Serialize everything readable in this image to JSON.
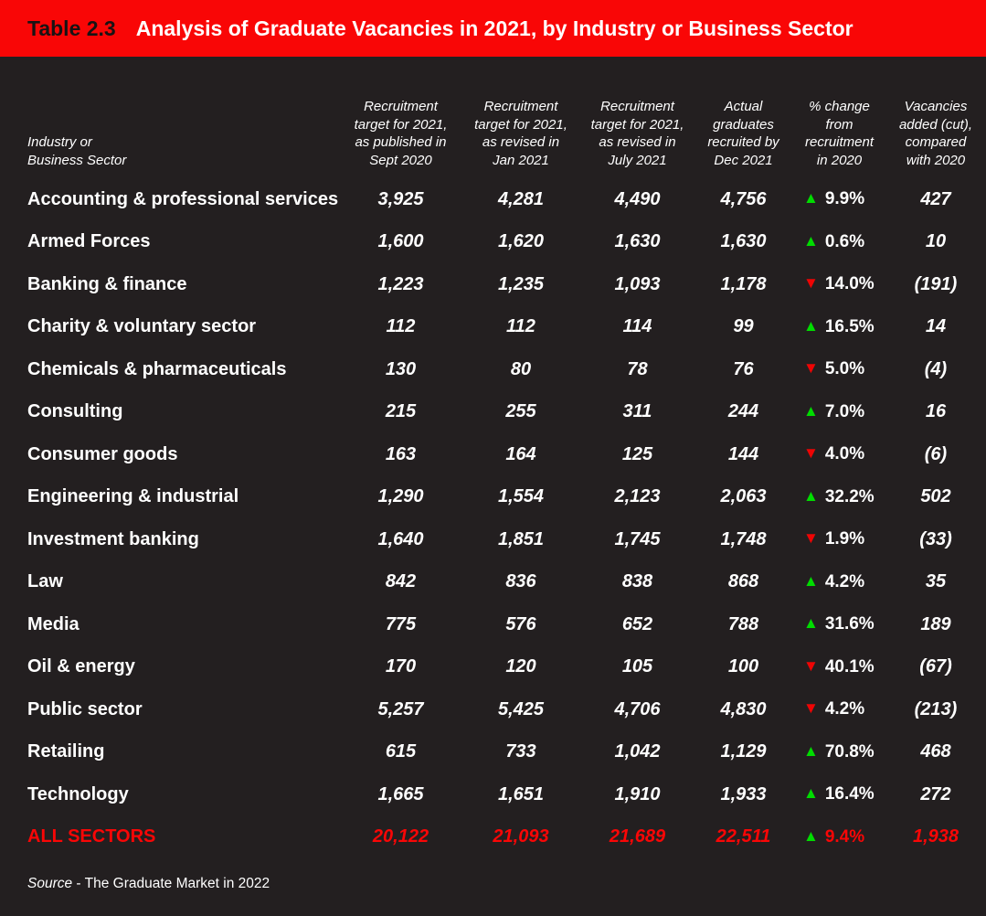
{
  "title_bar": {
    "label": "Table 2.3",
    "title": "Analysis of Graduate Vacancies in 2021, by Industry or Business Sector"
  },
  "colors": {
    "header_red": "#f90606",
    "background": "#231f20",
    "text_white": "#ffffff",
    "positive_green": "#00dc00",
    "negative_red": "#ee0404",
    "total_row_red": "#f90606"
  },
  "icons": {
    "up": "▲",
    "down": "▼"
  },
  "table": {
    "industry_header_lines": [
      "Industry or",
      "Business Sector"
    ],
    "column_header_lines": [
      [
        "Recruitment",
        "target for 2021,",
        "as published in",
        "Sept 2020"
      ],
      [
        "Recruitment",
        "target for 2021,",
        "as revised in",
        "Jan 2021"
      ],
      [
        "Recruitment",
        "target for 2021,",
        "as revised in",
        "July 2021"
      ],
      [
        "Actual",
        "graduates",
        "recruited by",
        "Dec 2021"
      ],
      [
        "% change",
        "from",
        "recruitment",
        "in 2020"
      ],
      [
        "Vacancies",
        "added (cut),",
        "compared",
        "with 2020"
      ]
    ],
    "rows": [
      {
        "sector": "Accounting & professional services",
        "values": [
          "3,925",
          "4,281",
          "4,490",
          "4,756"
        ],
        "dir": "up",
        "pct": "9.9%",
        "vacancies": "427",
        "total": false
      },
      {
        "sector": "Armed Forces",
        "values": [
          "1,600",
          "1,620",
          "1,630",
          "1,630"
        ],
        "dir": "up",
        "pct": "0.6%",
        "vacancies": "10",
        "total": false
      },
      {
        "sector": "Banking & finance",
        "values": [
          "1,223",
          "1,235",
          "1,093",
          "1,178"
        ],
        "dir": "down",
        "pct": "14.0%",
        "vacancies": "(191)",
        "total": false
      },
      {
        "sector": "Charity & voluntary sector",
        "values": [
          "112",
          "112",
          "114",
          "99"
        ],
        "dir": "up",
        "pct": "16.5%",
        "vacancies": "14",
        "total": false
      },
      {
        "sector": "Chemicals & pharmaceuticals",
        "values": [
          "130",
          "80",
          "78",
          "76"
        ],
        "dir": "down",
        "pct": "5.0%",
        "vacancies": "(4)",
        "total": false
      },
      {
        "sector": "Consulting",
        "values": [
          "215",
          "255",
          "311",
          "244"
        ],
        "dir": "up",
        "pct": "7.0%",
        "vacancies": "16",
        "total": false
      },
      {
        "sector": "Consumer goods",
        "values": [
          "163",
          "164",
          "125",
          "144"
        ],
        "dir": "down",
        "pct": "4.0%",
        "vacancies": "(6)",
        "total": false
      },
      {
        "sector": "Engineering & industrial",
        "values": [
          "1,290",
          "1,554",
          "2,123",
          "2,063"
        ],
        "dir": "up",
        "pct": "32.2%",
        "vacancies": "502",
        "total": false
      },
      {
        "sector": "Investment banking",
        "values": [
          "1,640",
          "1,851",
          "1,745",
          "1,748"
        ],
        "dir": "down",
        "pct": "1.9%",
        "vacancies": "(33)",
        "total": false
      },
      {
        "sector": "Law",
        "values": [
          "842",
          "836",
          "838",
          "868"
        ],
        "dir": "up",
        "pct": "4.2%",
        "vacancies": "35",
        "total": false
      },
      {
        "sector": "Media",
        "values": [
          "775",
          "576",
          "652",
          "788"
        ],
        "dir": "up",
        "pct": "31.6%",
        "vacancies": "189",
        "total": false
      },
      {
        "sector": "Oil & energy",
        "values": [
          "170",
          "120",
          "105",
          "100"
        ],
        "dir": "down",
        "pct": "40.1%",
        "vacancies": "(67)",
        "total": false
      },
      {
        "sector": "Public sector",
        "values": [
          "5,257",
          "5,425",
          "4,706",
          "4,830"
        ],
        "dir": "down",
        "pct": "4.2%",
        "vacancies": "(213)",
        "total": false
      },
      {
        "sector": "Retailing",
        "values": [
          "615",
          "733",
          "1,042",
          "1,129"
        ],
        "dir": "up",
        "pct": "70.8%",
        "vacancies": "468",
        "total": false
      },
      {
        "sector": "Technology",
        "values": [
          "1,665",
          "1,651",
          "1,910",
          "1,933"
        ],
        "dir": "up",
        "pct": "16.4%",
        "vacancies": "272",
        "total": false
      },
      {
        "sector": "ALL SECTORS",
        "values": [
          "20,122",
          "21,093",
          "21,689",
          "22,511"
        ],
        "dir": "up",
        "pct": "9.4%",
        "vacancies": "1,938",
        "total": true
      }
    ]
  },
  "source": {
    "prefix": "Source",
    "text": " - The Graduate Market in 2022"
  },
  "chart_data": {
    "type": "table",
    "title": "Table 2.3 Analysis of Graduate Vacancies in 2021, by Industry or Business Sector",
    "columns": [
      "Industry or Business Sector",
      "Recruitment target for 2021, as published in Sept 2020",
      "Recruitment target for 2021, as revised in Jan 2021",
      "Recruitment target for 2021, as revised in July 2021",
      "Actual graduates recruited by Dec 2021",
      "% change from recruitment in 2020",
      "Vacancies added (cut), compared with 2020"
    ],
    "rows": [
      [
        "Accounting & professional services",
        3925,
        4281,
        4490,
        4756,
        9.9,
        427
      ],
      [
        "Armed Forces",
        1600,
        1620,
        1630,
        1630,
        0.6,
        10
      ],
      [
        "Banking & finance",
        1223,
        1235,
        1093,
        1178,
        -14.0,
        -191
      ],
      [
        "Charity & voluntary sector",
        112,
        112,
        114,
        99,
        16.5,
        14
      ],
      [
        "Chemicals & pharmaceuticals",
        130,
        80,
        78,
        76,
        -5.0,
        -4
      ],
      [
        "Consulting",
        215,
        255,
        311,
        244,
        7.0,
        16
      ],
      [
        "Consumer goods",
        163,
        164,
        125,
        144,
        -4.0,
        -6
      ],
      [
        "Engineering & industrial",
        1290,
        1554,
        2123,
        2063,
        32.2,
        502
      ],
      [
        "Investment banking",
        1640,
        1851,
        1745,
        1748,
        -1.9,
        -33
      ],
      [
        "Law",
        842,
        836,
        838,
        868,
        4.2,
        35
      ],
      [
        "Media",
        775,
        576,
        652,
        788,
        31.6,
        189
      ],
      [
        "Oil & energy",
        170,
        120,
        105,
        100,
        -40.1,
        -67
      ],
      [
        "Public sector",
        5257,
        5425,
        4706,
        4830,
        -4.2,
        -213
      ],
      [
        "Retailing",
        615,
        733,
        1042,
        1129,
        70.8,
        468
      ],
      [
        "Technology",
        1665,
        1651,
        1910,
        1933,
        16.4,
        272
      ],
      [
        "ALL SECTORS",
        20122,
        21093,
        21689,
        22511,
        9.4,
        1938
      ]
    ],
    "source": "Source - The Graduate Market in 2022"
  }
}
